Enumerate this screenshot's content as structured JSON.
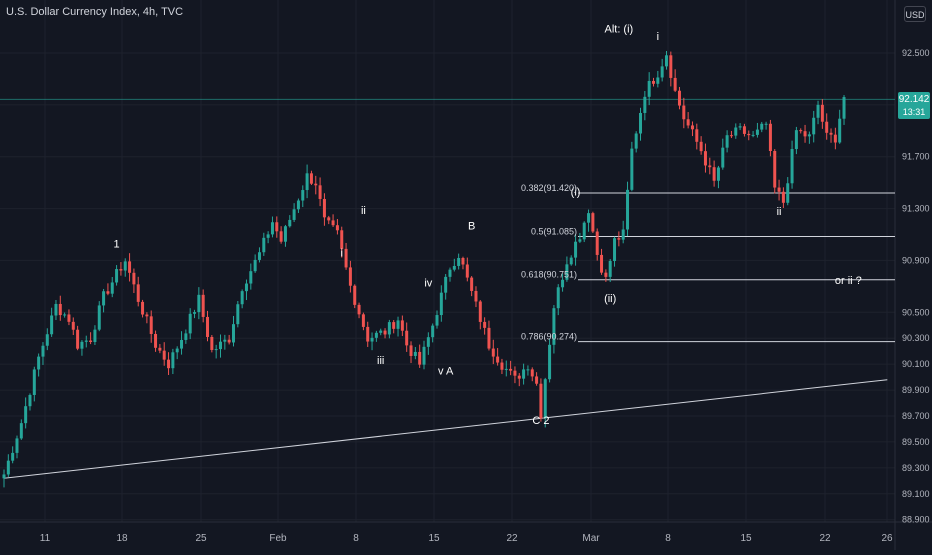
{
  "header": {
    "title": "U.S. Dollar Currency Index, 4h, TVC",
    "currency_button": "USD"
  },
  "price_badge": {
    "price": "92.142",
    "countdown": "13:31"
  },
  "chart_data": {
    "type": "candlestick",
    "ylim": [
      88.9,
      92.8
    ],
    "y_ticks": [
      "92.500",
      "92.100",
      "91.700",
      "91.300",
      "90.900",
      "90.500",
      "90.300",
      "90.100",
      "89.900",
      "89.700",
      "89.500",
      "89.300",
      "89.100",
      "88.900"
    ],
    "x_ticks": [
      "11",
      "18",
      "25",
      "Feb",
      "8",
      "15",
      "22",
      "Mar",
      "8",
      "15",
      "22",
      "26"
    ],
    "path_points": [
      {
        "i": 0,
        "p": 89.25
      },
      {
        "i": 4,
        "p": 89.65
      },
      {
        "i": 8,
        "p": 90.15
      },
      {
        "i": 12,
        "p": 90.55
      },
      {
        "i": 15,
        "p": 90.45
      },
      {
        "i": 17,
        "p": 90.25
      },
      {
        "i": 20,
        "p": 90.3
      },
      {
        "i": 23,
        "p": 90.62
      },
      {
        "i": 27,
        "p": 90.85
      },
      {
        "i": 28,
        "p": 90.9
      },
      {
        "i": 31,
        "p": 90.6
      },
      {
        "i": 35,
        "p": 90.25
      },
      {
        "i": 38,
        "p": 90.1
      },
      {
        "i": 41,
        "p": 90.3
      },
      {
        "i": 45,
        "p": 90.6
      },
      {
        "i": 48,
        "p": 90.2
      },
      {
        "i": 52,
        "p": 90.3
      },
      {
        "i": 55,
        "p": 90.7
      },
      {
        "i": 59,
        "p": 90.95
      },
      {
        "i": 62,
        "p": 91.2
      },
      {
        "i": 64,
        "p": 91.05
      },
      {
        "i": 67,
        "p": 91.3
      },
      {
        "i": 70,
        "p": 91.55
      },
      {
        "i": 72,
        "p": 91.5
      },
      {
        "i": 74,
        "p": 91.2
      },
      {
        "i": 77,
        "p": 91.1
      },
      {
        "i": 80,
        "p": 90.7
      },
      {
        "i": 84,
        "p": 90.3
      },
      {
        "i": 88,
        "p": 90.35
      },
      {
        "i": 91,
        "p": 90.45
      },
      {
        "i": 93,
        "p": 90.25
      },
      {
        "i": 96,
        "p": 90.1
      },
      {
        "i": 99,
        "p": 90.4
      },
      {
        "i": 103,
        "p": 90.85
      },
      {
        "i": 105,
        "p": 90.95
      },
      {
        "i": 108,
        "p": 90.65
      },
      {
        "i": 112,
        "p": 90.25
      },
      {
        "i": 115,
        "p": 90.1
      },
      {
        "i": 118,
        "p": 89.98
      },
      {
        "i": 121,
        "p": 90.1
      },
      {
        "i": 123,
        "p": 89.95
      },
      {
        "i": 124,
        "p": 89.72
      },
      {
        "i": 127,
        "p": 90.55
      },
      {
        "i": 130,
        "p": 90.9
      },
      {
        "i": 133,
        "p": 91.1
      },
      {
        "i": 135,
        "p": 91.3
      },
      {
        "i": 137,
        "p": 90.95
      },
      {
        "i": 139,
        "p": 90.75
      },
      {
        "i": 141,
        "p": 91.05
      },
      {
        "i": 143,
        "p": 91.1
      },
      {
        "i": 145,
        "p": 91.75
      },
      {
        "i": 148,
        "p": 92.2
      },
      {
        "i": 151,
        "p": 92.35
      },
      {
        "i": 153,
        "p": 92.5
      },
      {
        "i": 155,
        "p": 92.2
      },
      {
        "i": 157,
        "p": 92.0
      },
      {
        "i": 161,
        "p": 91.75
      },
      {
        "i": 164,
        "p": 91.5
      },
      {
        "i": 167,
        "p": 91.85
      },
      {
        "i": 170,
        "p": 91.9
      },
      {
        "i": 173,
        "p": 91.85
      },
      {
        "i": 176,
        "p": 91.95
      },
      {
        "i": 178,
        "p": 91.45
      },
      {
        "i": 180,
        "p": 91.35
      },
      {
        "i": 183,
        "p": 91.9
      },
      {
        "i": 186,
        "p": 91.85
      },
      {
        "i": 188,
        "p": 92.1
      },
      {
        "i": 190,
        "p": 91.85
      },
      {
        "i": 192,
        "p": 91.85
      },
      {
        "i": 194,
        "p": 92.16
      }
    ],
    "fib_levels": [
      {
        "label": "0.382(91.420)",
        "value": 91.42
      },
      {
        "label": "0.5(91.085)",
        "value": 91.085
      },
      {
        "label": "0.618(90.751)",
        "value": 90.751
      },
      {
        "label": "0.786(90.274)",
        "value": 90.274
      }
    ],
    "current_price_line": 92.142,
    "trendline": {
      "start": {
        "i": 0,
        "p": 89.22
      },
      "end": {
        "i": 204,
        "p": 89.98
      }
    },
    "annotations": [
      {
        "text": "1",
        "i": 26,
        "p": 91.0
      },
      {
        "text": "ii",
        "i": 83,
        "p": 91.26
      },
      {
        "text": "i",
        "i": 78,
        "p": 90.93
      },
      {
        "text": "iii",
        "i": 87,
        "p": 90.1
      },
      {
        "text": "iv",
        "i": 98,
        "p": 90.7
      },
      {
        "text": "v A",
        "i": 102,
        "p": 90.02
      },
      {
        "text": "B",
        "i": 108,
        "p": 91.14
      },
      {
        "text": "C 2",
        "i": 124,
        "p": 89.64
      },
      {
        "text": "(i)",
        "i": 132,
        "p": 91.4
      },
      {
        "text": "(ii)",
        "i": 140,
        "p": 90.58
      },
      {
        "text": "Alt: (i)",
        "i": 142,
        "p": 92.66
      },
      {
        "text": "i",
        "i": 151,
        "p": 92.6
      },
      {
        "text": "ii",
        "i": 179,
        "p": 91.25
      },
      {
        "text": "or ii ?",
        "i": 195,
        "p": 90.72
      }
    ]
  }
}
